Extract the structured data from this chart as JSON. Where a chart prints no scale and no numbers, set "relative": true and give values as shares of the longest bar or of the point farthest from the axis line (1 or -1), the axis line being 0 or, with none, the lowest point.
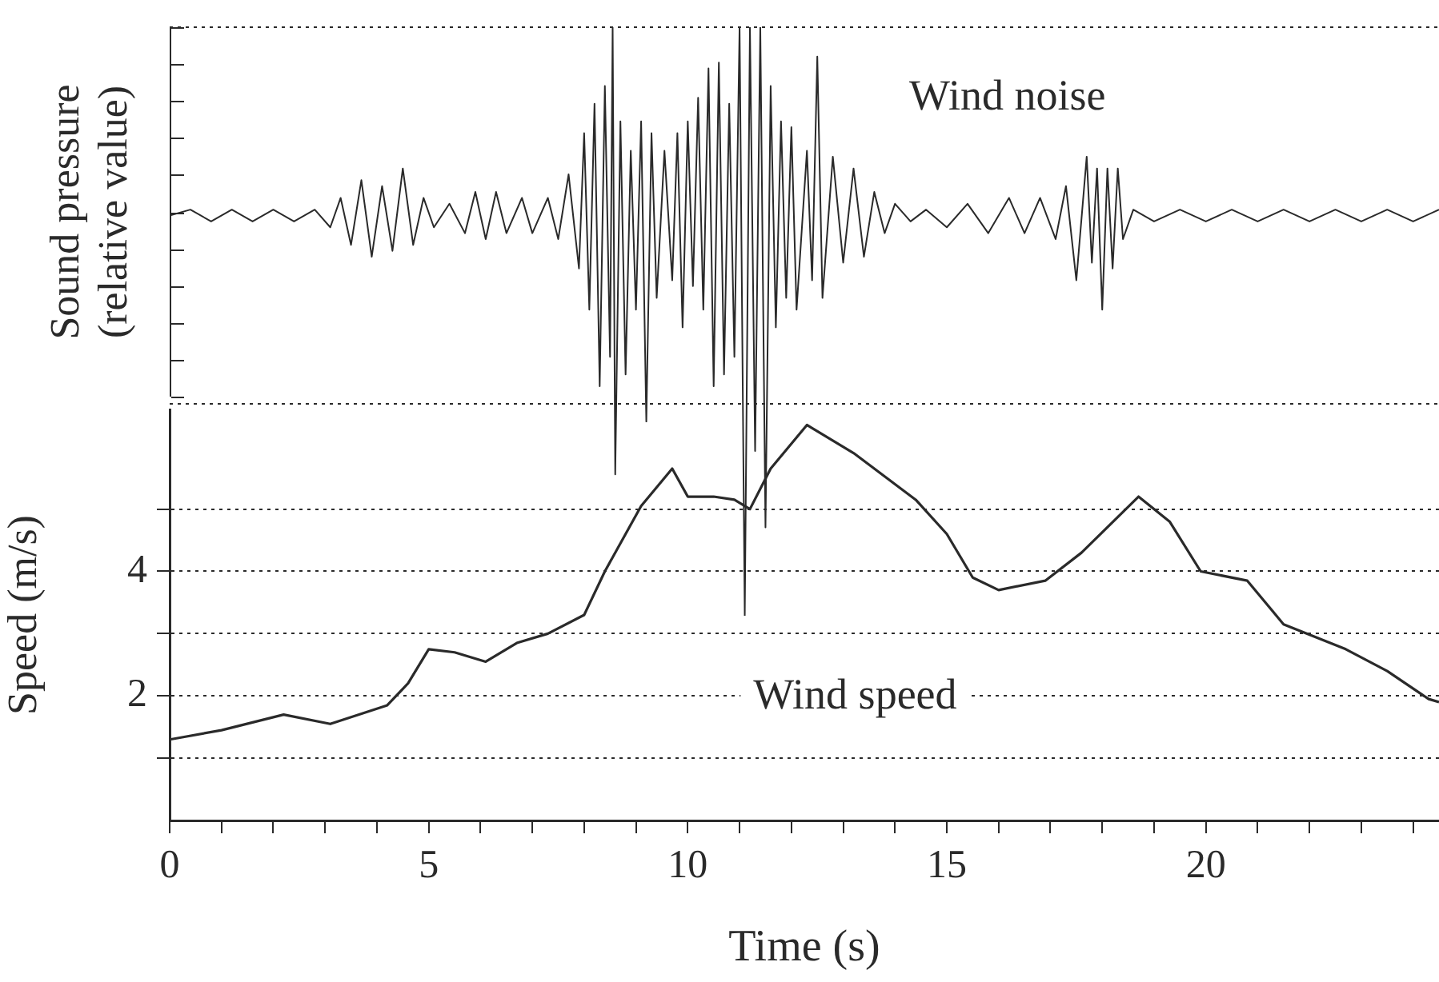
{
  "chart_data": [
    {
      "type": "line",
      "ylabel": "Sound pressure (relative value)",
      "relative": true,
      "tick_labels": false,
      "xlim": [
        0,
        24.5
      ],
      "xticks": [
        0,
        5,
        10,
        15,
        20
      ],
      "annotations": [
        "Wind noise"
      ],
      "ref_lines": [
        {
          "axis": "y",
          "value": 1,
          "line_style": "dotted"
        },
        {
          "axis": "y",
          "value": 0.36,
          "line_style": "dotted"
        }
      ],
      "x": [
        0,
        0.4,
        0.8,
        1.2,
        1.6,
        2.0,
        2.4,
        2.8,
        3.1,
        3.3,
        3.5,
        3.7,
        3.9,
        4.1,
        4.3,
        4.5,
        4.7,
        4.9,
        5.1,
        5.4,
        5.7,
        5.9,
        6.1,
        6.3,
        6.5,
        6.8,
        7.0,
        7.3,
        7.5,
        7.7,
        7.9,
        8.0,
        8.1,
        8.2,
        8.3,
        8.4,
        8.5,
        8.55,
        8.6,
        8.7,
        8.8,
        8.9,
        9.0,
        9.1,
        9.2,
        9.3,
        9.4,
        9.55,
        9.7,
        9.8,
        9.9,
        10.0,
        10.1,
        10.2,
        10.3,
        10.4,
        10.5,
        10.6,
        10.7,
        10.8,
        10.9,
        11.0,
        11.1,
        11.2,
        11.3,
        11.4,
        11.5,
        11.6,
        11.7,
        11.8,
        11.9,
        12.0,
        12.1,
        12.3,
        12.4,
        12.5,
        12.6,
        12.8,
        13.0,
        13.2,
        13.4,
        13.6,
        13.8,
        14.0,
        14.3,
        14.6,
        15.0,
        15.4,
        15.8,
        16.2,
        16.5,
        16.8,
        17.1,
        17.3,
        17.5,
        17.7,
        17.8,
        17.9,
        18.0,
        18.1,
        18.2,
        18.3,
        18.4,
        18.6,
        19.0,
        19.5,
        20.0,
        20.5,
        21.0,
        21.5,
        22.0,
        22.5,
        23.0,
        23.5,
        24.0,
        24.5
      ],
      "series": [
        {
          "color": "#2a2a2a",
          "values": [
            0.68,
            0.69,
            0.67,
            0.69,
            0.67,
            0.69,
            0.67,
            0.69,
            0.66,
            0.71,
            0.63,
            0.74,
            0.61,
            0.73,
            0.62,
            0.76,
            0.63,
            0.71,
            0.66,
            0.7,
            0.65,
            0.72,
            0.64,
            0.72,
            0.65,
            0.71,
            0.65,
            0.71,
            0.64,
            0.75,
            0.59,
            0.82,
            0.52,
            0.87,
            0.39,
            0.9,
            0.44,
            1,
            0.24,
            0.84,
            0.41,
            0.79,
            0.52,
            0.84,
            0.33,
            0.82,
            0.54,
            0.79,
            0.57,
            0.82,
            0.49,
            0.84,
            0.56,
            0.88,
            0.52,
            0.93,
            0.39,
            0.94,
            0.41,
            0.87,
            0.44,
            1,
            0,
            1,
            0.28,
            1,
            0.15,
            0.9,
            0.49,
            0.84,
            0.54,
            0.83,
            0.52,
            0.79,
            0.57,
            0.95,
            0.54,
            0.78,
            0.6,
            0.76,
            0.61,
            0.72,
            0.65,
            0.7,
            0.67,
            0.69,
            0.66,
            0.7,
            0.65,
            0.71,
            0.65,
            0.71,
            0.64,
            0.73,
            0.57,
            0.78,
            0.6,
            0.76,
            0.52,
            0.76,
            0.59,
            0.76,
            0.64,
            0.69,
            0.67,
            0.69,
            0.67,
            0.69,
            0.67,
            0.69,
            0.67,
            0.69,
            0.67,
            0.69,
            0.67,
            0.69
          ]
        }
      ]
    },
    {
      "type": "line",
      "xlabel": "Time (s)",
      "ylabel": "Speed (m/s)",
      "xlim": [
        0,
        24.5
      ],
      "ylim": [
        0,
        6.6
      ],
      "grid": "y",
      "annotations": [
        "Wind speed"
      ],
      "xticks": [
        0,
        {
          "value": 1,
          "label": null
        },
        {
          "value": 2,
          "label": null
        },
        {
          "value": 3,
          "label": null
        },
        {
          "value": 4,
          "label": null
        },
        5,
        {
          "value": 6,
          "label": null
        },
        {
          "value": 7,
          "label": null
        },
        {
          "value": 8,
          "label": null
        },
        {
          "value": 9,
          "label": null
        },
        10,
        {
          "value": 11,
          "label": null
        },
        {
          "value": 12,
          "label": null
        },
        {
          "value": 13,
          "label": null
        },
        {
          "value": 14,
          "label": null
        },
        15,
        {
          "value": 16,
          "label": null
        },
        {
          "value": 17,
          "label": null
        },
        {
          "value": 18,
          "label": null
        },
        {
          "value": 19,
          "label": null
        },
        20,
        {
          "value": 21,
          "label": null
        },
        {
          "value": 22,
          "label": null
        },
        {
          "value": 23,
          "label": null
        },
        {
          "value": 24,
          "label": null
        }
      ],
      "yticks": [
        {
          "value": 1,
          "label": null
        },
        2,
        {
          "value": 3,
          "label": null
        },
        4,
        {
          "value": 5,
          "label": null
        }
      ],
      "x": [
        0,
        1,
        2.2,
        3.1,
        4.2,
        4.6,
        5.0,
        5.5,
        6.1,
        6.7,
        7.3,
        8.0,
        8.4,
        9.1,
        9.7,
        10.0,
        10.5,
        10.9,
        11.2,
        11.6,
        12.3,
        13.2,
        14.4,
        15.0,
        15.5,
        16.0,
        16.9,
        17.6,
        18.7,
        19.3,
        19.9,
        20.8,
        21.5,
        22.7,
        23.5,
        24.3,
        24.5
      ],
      "series": [
        {
          "color": "#2a2a2a",
          "values": [
            1.3,
            1.45,
            1.7,
            1.55,
            1.85,
            2.2,
            2.75,
            2.7,
            2.55,
            2.85,
            3.0,
            3.3,
            4.0,
            5.05,
            5.65,
            5.2,
            5.2,
            5.15,
            5.0,
            5.65,
            6.35,
            5.9,
            5.15,
            4.6,
            3.9,
            3.7,
            3.85,
            4.3,
            5.2,
            4.8,
            4.0,
            3.85,
            3.15,
            2.75,
            2.4,
            1.95,
            1.9
          ]
        }
      ]
    }
  ]
}
